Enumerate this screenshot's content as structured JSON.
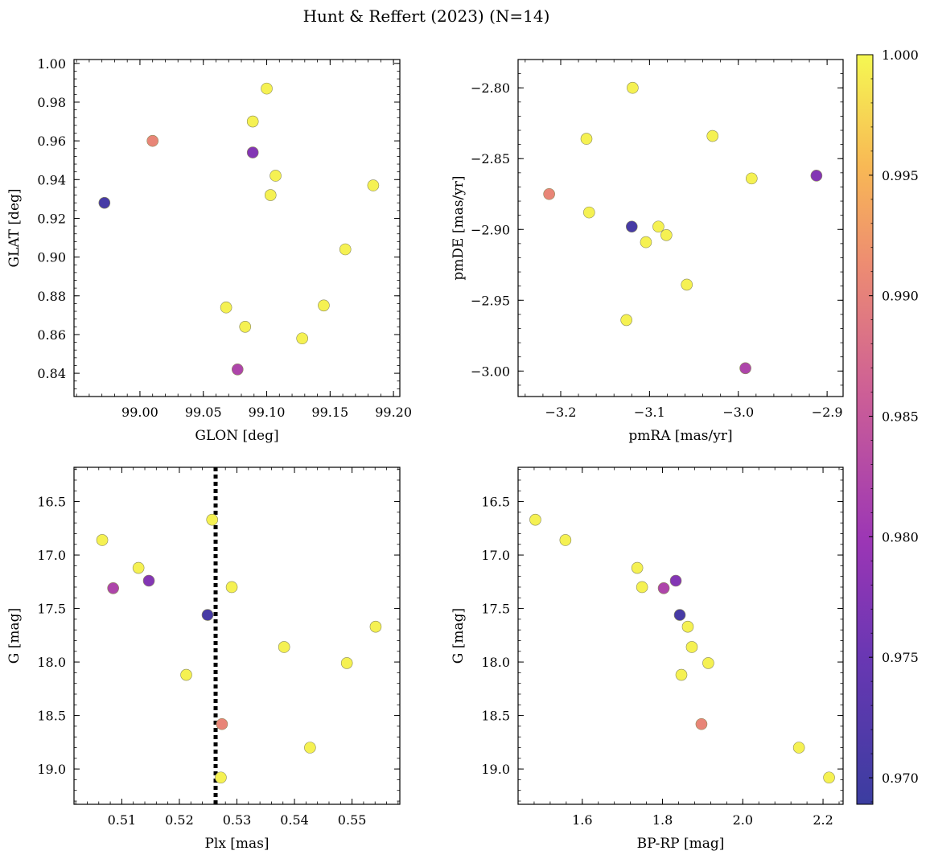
{
  "suptitle": "Hunt & Reffert (2023) (N=14)",
  "colorbar": {
    "vmin": 0.9689,
    "vmax": 1.0,
    "ticks": [
      "1.000",
      "0.995",
      "0.990",
      "0.985",
      "0.980",
      "0.975",
      "0.970"
    ],
    "tick_values": [
      1.0,
      0.995,
      0.99,
      0.985,
      0.98,
      0.975,
      0.97
    ],
    "colormap": "plasma"
  },
  "chart_data": [
    {
      "type": "scatter",
      "xlabel": "GLON [deg]",
      "ylabel": "GLAT [deg]",
      "xlim": [
        98.948,
        99.205
      ],
      "ylim": [
        0.828,
        1.002
      ],
      "xticks": [
        99.0,
        99.05,
        99.1,
        99.15,
        99.2
      ],
      "xticklabels": [
        "99.00",
        "99.05",
        "99.10",
        "99.15",
        "99.20"
      ],
      "yticks": [
        0.84,
        0.86,
        0.88,
        0.9,
        0.92,
        0.94,
        0.96,
        0.98,
        1.0
      ],
      "yticklabels": [
        "0.84",
        "0.86",
        "0.88",
        "0.90",
        "0.92",
        "0.94",
        "0.96",
        "0.98",
        "1.00"
      ],
      "invert_y": false,
      "x": [
        99.1,
        99.089,
        99.01,
        99.089,
        99.107,
        99.103,
        99.184,
        98.972,
        99.162,
        99.068,
        99.145,
        99.083,
        99.128,
        99.077
      ],
      "y": [
        0.987,
        0.97,
        0.96,
        0.954,
        0.942,
        0.932,
        0.937,
        0.928,
        0.904,
        0.874,
        0.875,
        0.864,
        0.858,
        0.842
      ],
      "prob": [
        0.9995,
        0.9995,
        0.9905,
        0.9775,
        0.9995,
        0.9995,
        0.9995,
        0.9705,
        0.9995,
        0.9995,
        0.9995,
        0.9995,
        0.9995,
        0.982
      ]
    },
    {
      "type": "scatter",
      "xlabel": "pmRA [mas/yr]",
      "ylabel": "pmDE [mas/yr]",
      "xlim": [
        -3.248,
        -2.882
      ],
      "ylim": [
        -3.018,
        -2.78
      ],
      "xticks": [
        -3.2,
        -3.1,
        -3.0,
        -2.9
      ],
      "xticklabels": [
        "−3.2",
        "−3.1",
        "−3.0",
        "−2.9"
      ],
      "yticks": [
        -3.0,
        -2.95,
        -2.9,
        -2.85,
        -2.8
      ],
      "yticklabels": [
        "−3.00",
        "−2.95",
        "−2.90",
        "−2.85",
        "−2.80"
      ],
      "invert_y": false,
      "x": [
        -3.119,
        -3.171,
        -3.029,
        -3.213,
        -2.985,
        -2.912,
        -3.168,
        -3.12,
        -3.09,
        -3.104,
        -3.081,
        -3.058,
        -3.126,
        -2.992
      ],
      "y": [
        -2.8,
        -2.836,
        -2.834,
        -2.875,
        -2.864,
        -2.862,
        -2.888,
        -2.898,
        -2.898,
        -2.909,
        -2.904,
        -2.939,
        -2.964,
        -2.998
      ],
      "prob": [
        0.9995,
        0.9995,
        0.9995,
        0.9905,
        0.9995,
        0.9775,
        0.9995,
        0.9705,
        0.9995,
        0.9995,
        0.9995,
        0.9995,
        0.9995,
        0.982
      ]
    },
    {
      "type": "scatter",
      "xlabel": "Plx [mas]",
      "ylabel": "G [mag]",
      "xlim": [
        0.5017,
        0.5583
      ],
      "ylim": [
        19.33,
        16.18
      ],
      "xticks": [
        0.51,
        0.52,
        0.53,
        0.54,
        0.55
      ],
      "xticklabels": [
        "0.51",
        "0.52",
        "0.53",
        "0.54",
        "0.55"
      ],
      "yticks": [
        16.5,
        17.0,
        17.5,
        18.0,
        18.5,
        19.0
      ],
      "yticklabels": [
        "16.5",
        "17.0",
        "17.5",
        "18.0",
        "18.5",
        "19.0"
      ],
      "invert_y": true,
      "vline": 0.5263,
      "x": [
        0.5257,
        0.5066,
        0.5129,
        0.5147,
        0.5085,
        0.5291,
        0.5249,
        0.5541,
        0.5382,
        0.5491,
        0.5212,
        0.5274,
        0.5427,
        0.5272
      ],
      "y": [
        16.67,
        16.86,
        17.12,
        17.24,
        17.31,
        17.3,
        17.56,
        17.67,
        17.86,
        18.01,
        18.12,
        18.58,
        18.8,
        19.08
      ],
      "prob": [
        0.9995,
        0.9995,
        0.9995,
        0.9775,
        0.982,
        0.9995,
        0.9705,
        0.9995,
        0.9995,
        0.9995,
        0.9995,
        0.9905,
        0.9995,
        0.9995
      ]
    },
    {
      "type": "scatter",
      "xlabel": "BP-RP [mag]",
      "ylabel": "G [mag]",
      "xlim": [
        1.44,
        2.25
      ],
      "ylim": [
        19.33,
        16.18
      ],
      "xticks": [
        1.6,
        1.8,
        2.0,
        2.2
      ],
      "xticklabels": [
        "1.6",
        "1.8",
        "2.0",
        "2.2"
      ],
      "yticks": [
        16.5,
        17.0,
        17.5,
        18.0,
        18.5,
        19.0
      ],
      "yticklabels": [
        "16.5",
        "17.0",
        "17.5",
        "18.0",
        "18.5",
        "19.0"
      ],
      "invert_y": true,
      "x": [
        1.483,
        1.558,
        1.737,
        1.833,
        1.803,
        1.749,
        1.843,
        1.863,
        1.873,
        1.914,
        1.847,
        1.897,
        2.14,
        2.215
      ],
      "y": [
        16.67,
        16.86,
        17.12,
        17.24,
        17.31,
        17.3,
        17.56,
        17.67,
        17.86,
        18.01,
        18.12,
        18.58,
        18.8,
        19.08
      ],
      "prob": [
        0.9995,
        0.9995,
        0.9995,
        0.9775,
        0.982,
        0.9995,
        0.9705,
        0.9995,
        0.9995,
        0.9995,
        0.9995,
        0.9905,
        0.9995,
        0.9995
      ]
    }
  ]
}
